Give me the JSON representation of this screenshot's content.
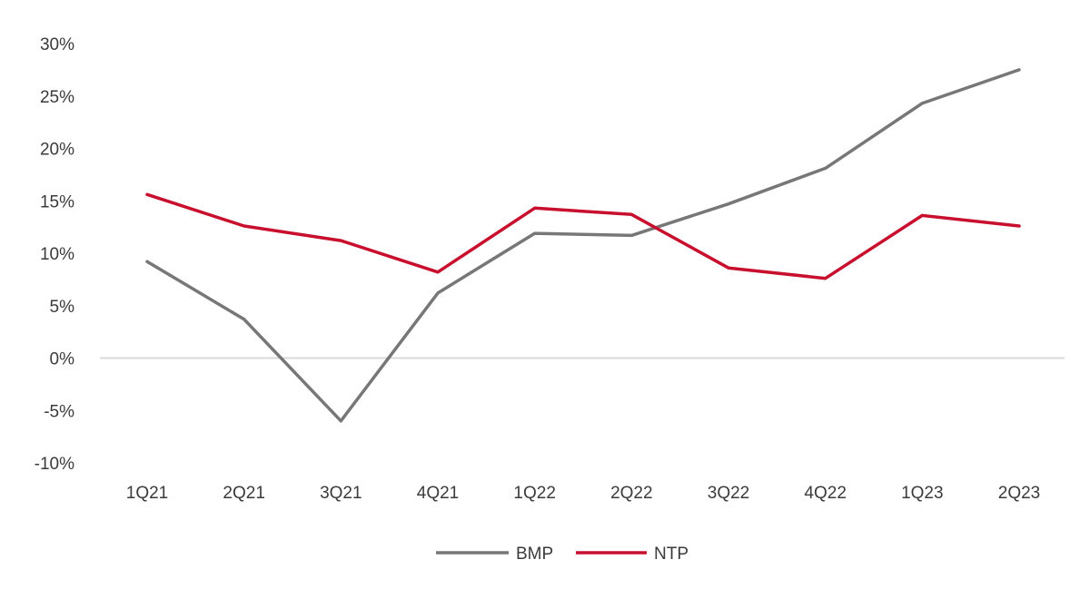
{
  "chart_data": {
    "type": "line",
    "title": "",
    "xlabel": "",
    "ylabel": "",
    "categories": [
      "1Q21",
      "2Q21",
      "3Q21",
      "4Q21",
      "1Q22",
      "2Q22",
      "3Q22",
      "4Q22",
      "1Q23",
      "2Q23"
    ],
    "y_ticks": [
      -10,
      -5,
      0,
      5,
      10,
      15,
      20,
      25,
      30
    ],
    "y_tick_labels": [
      "-10%",
      "-5%",
      "0%",
      "5%",
      "10%",
      "15%",
      "20%",
      "25%",
      "30%"
    ],
    "ylim": [
      -10,
      30
    ],
    "grid": false,
    "zero_line": true,
    "legend_position": "bottom-center",
    "series": [
      {
        "name": "BMP",
        "color": "#777777",
        "values": [
          9.2,
          3.7,
          -6.0,
          6.2,
          11.9,
          11.7,
          14.7,
          18.1,
          24.3,
          27.5
        ]
      },
      {
        "name": "NTP",
        "color": "#c8102e",
        "values": [
          15.6,
          12.6,
          11.2,
          8.2,
          14.3,
          13.7,
          8.6,
          7.6,
          13.6,
          12.6
        ]
      }
    ]
  }
}
